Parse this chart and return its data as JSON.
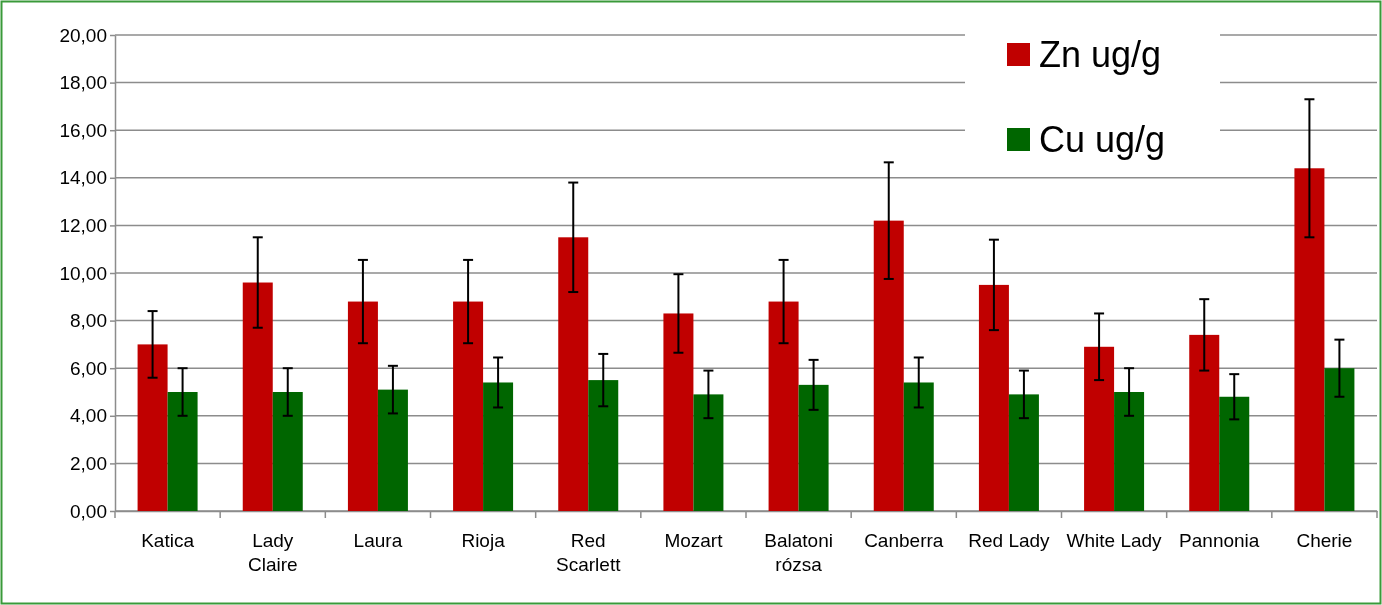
{
  "chart_data": {
    "type": "bar",
    "categories": [
      "Katica",
      "Lady Claire",
      "Laura",
      "Rioja",
      "Red Scarlett",
      "Mozart",
      "Balatoni rózsa",
      "Canberra",
      "Red Lady",
      "White Lady",
      "Pannonia",
      "Cherie"
    ],
    "series": [
      {
        "name": "Zn ug/g",
        "color": "#c00000",
        "values": [
          7.0,
          9.6,
          8.8,
          8.8,
          11.5,
          8.3,
          8.8,
          12.2,
          9.5,
          6.9,
          7.4,
          14.4
        ],
        "errors": [
          1.4,
          1.9,
          1.75,
          1.75,
          2.3,
          1.65,
          1.75,
          2.45,
          1.9,
          1.4,
          1.5,
          2.9
        ]
      },
      {
        "name": "Cu ug/g",
        "color": "#006600",
        "values": [
          5.0,
          5.0,
          5.1,
          5.4,
          5.5,
          4.9,
          5.3,
          5.4,
          4.9,
          5.0,
          4.8,
          6.0
        ],
        "errors": [
          1.0,
          1.0,
          1.0,
          1.05,
          1.1,
          1.0,
          1.05,
          1.05,
          1.0,
          1.0,
          0.95,
          1.2
        ]
      }
    ],
    "ylim": [
      0,
      20
    ],
    "yticks": [
      {
        "value": 0,
        "label": "0,00"
      },
      {
        "value": 2,
        "label": "2,00"
      },
      {
        "value": 4,
        "label": "4,00"
      },
      {
        "value": 6,
        "label": "6,00"
      },
      {
        "value": 8,
        "label": "8,00"
      },
      {
        "value": 10,
        "label": "10,00"
      },
      {
        "value": 12,
        "label": "12,00"
      },
      {
        "value": 14,
        "label": "14,00"
      },
      {
        "value": 16,
        "label": "16,00"
      },
      {
        "value": 18,
        "label": "18,00"
      },
      {
        "value": 20,
        "label": "20,00"
      }
    ],
    "grid": "y",
    "legend": "top right"
  }
}
